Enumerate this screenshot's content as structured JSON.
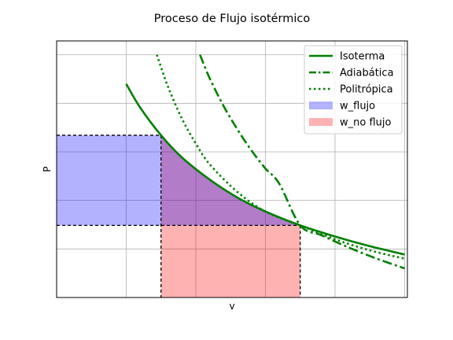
{
  "chart_data": {
    "type": "line",
    "title": "Proceso de Flujo isotérmico",
    "xlabel": "v",
    "ylabel": "P",
    "xlim": [
      0.5,
      3.02
    ],
    "ylim": [
      0.3,
      2.15
    ],
    "grid": true,
    "legend_position": "top-right",
    "xticks": [
      0.5,
      1.0,
      1.5,
      2.0,
      2.5,
      3.0
    ],
    "yticks": [
      0.3,
      0.65,
      1.0,
      1.35,
      1.7,
      2.05
    ],
    "states": {
      "v1": 1.25,
      "P1": 1.47,
      "v2": 2.25,
      "P2": 0.82
    },
    "series": [
      {
        "name": "Isoterma",
        "style": "solid",
        "color": "#008000",
        "x": [
          1.0,
          1.1,
          1.25,
          1.4,
          1.6,
          1.8,
          2.0,
          2.25,
          2.5,
          2.75,
          3.0
        ],
        "y": [
          1.84,
          1.67,
          1.47,
          1.31,
          1.15,
          1.02,
          0.92,
          0.82,
          0.74,
          0.67,
          0.61
        ]
      },
      {
        "name": "Adiabática",
        "style": "dashdot",
        "color": "#008000",
        "x": [
          1.53,
          1.6,
          1.7,
          1.8,
          1.9,
          2.0,
          2.1,
          2.25,
          2.4,
          2.6,
          2.8,
          3.0
        ],
        "y": [
          2.05,
          1.88,
          1.68,
          1.51,
          1.36,
          1.23,
          1.12,
          0.82,
          0.75,
          0.66,
          0.58,
          0.51
        ]
      },
      {
        "name": "Politrópica",
        "style": "dotted",
        "color": "#008000",
        "x": [
          1.22,
          1.3,
          1.4,
          1.5,
          1.6,
          1.8,
          2.0,
          2.25,
          2.5,
          2.75,
          3.0
        ],
        "y": [
          2.05,
          1.82,
          1.59,
          1.41,
          1.26,
          1.06,
          0.92,
          0.82,
          0.72,
          0.64,
          0.58
        ]
      }
    ],
    "fills": [
      {
        "name": "w_flujo",
        "color": "#0000ff",
        "alpha": 0.3
      },
      {
        "name": "w_no flujo",
        "color": "#ff0000",
        "alpha": 0.3
      }
    ]
  }
}
